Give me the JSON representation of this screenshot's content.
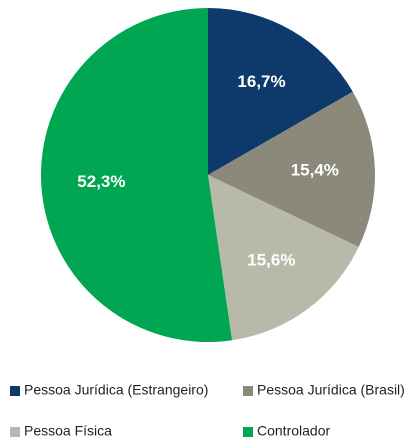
{
  "chart_data": {
    "type": "pie",
    "categories": [
      "Pessoa Jurídica (Estrangeiro)",
      "Pessoa Jurídica (Brasil)",
      "Pessoa Física",
      "Controlador"
    ],
    "values": [
      16.7,
      15.4,
      15.6,
      52.3
    ],
    "value_labels": [
      "16,7%",
      "15,4%",
      "15,6%",
      "52,3%"
    ],
    "colors": [
      "#0e3a6b",
      "#8b8a7a",
      "#b9b9aa",
      "#00a651"
    ]
  }
}
